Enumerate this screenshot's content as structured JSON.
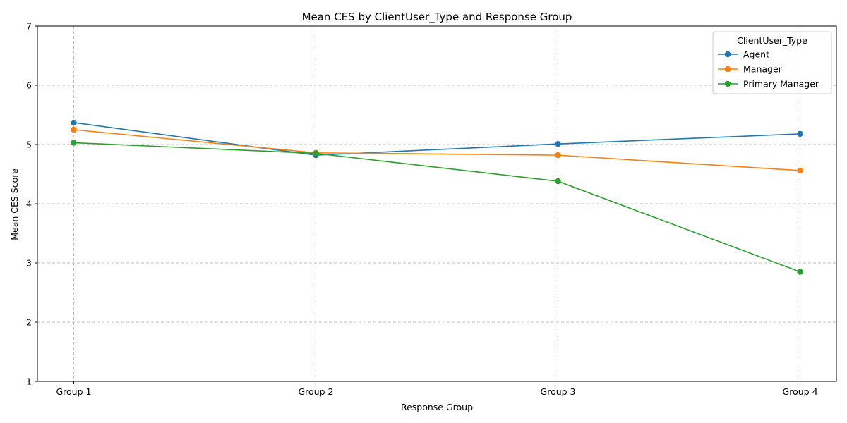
{
  "chart_data": {
    "type": "line",
    "title": "Mean CES by ClientUser_Type and Response Group",
    "xlabel": "Response Group",
    "ylabel": "Mean CES Score",
    "categories": [
      "Group 1",
      "Group 2",
      "Group 3",
      "Group 4"
    ],
    "ylim": [
      1,
      7
    ],
    "yticks": [
      "1",
      "2",
      "3",
      "4",
      "5",
      "6",
      "7"
    ],
    "grid": true,
    "legend": {
      "title": "ClientUser_Type",
      "placement": "top-right"
    },
    "series": [
      {
        "name": "Agent",
        "color": "#1f77b4",
        "values": [
          5.37,
          4.82,
          5.01,
          5.18
        ]
      },
      {
        "name": "Manager",
        "color": "#ff7f0e",
        "values": [
          5.25,
          4.86,
          4.82,
          4.56
        ]
      },
      {
        "name": "Primary Manager",
        "color": "#2ca02c",
        "values": [
          5.03,
          4.85,
          4.38,
          2.85
        ]
      }
    ]
  }
}
